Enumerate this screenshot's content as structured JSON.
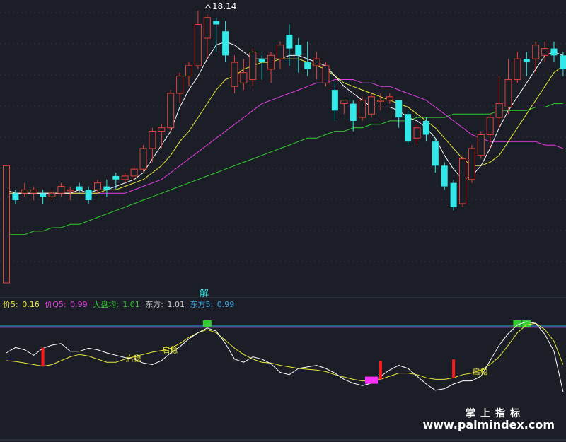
{
  "colors": {
    "background": "#1b1e26",
    "up": "#e2433b",
    "down": "#33e8e8",
    "ma_white": "#ffffff",
    "ma_yellow": "#e8e83a",
    "ma_magenta": "#e23ee2",
    "ma_green": "#33cc33",
    "separator": "#3a3d47",
    "grid": "#2f323c"
  },
  "main_chart": {
    "peak_label": "18.14",
    "jie_label": "解",
    "ylim": [
      0,
      1
    ]
  },
  "legend": [
    {
      "name": "价5:",
      "value": "0.16",
      "color": "#e8e83a"
    },
    {
      "name": "价Q5:",
      "value": "0.99",
      "color": "#e23ee2"
    },
    {
      "name": "大盘均:",
      "value": "1.01",
      "color": "#33cc33"
    },
    {
      "name": "东方:",
      "value": "1.01",
      "color": "#cccccc"
    },
    {
      "name": "东方5:",
      "value": "0.99",
      "color": "#3aa6e8"
    }
  ],
  "sub_chart": {
    "signal_label": "启稳"
  },
  "watermark": {
    "cn": "掌上指标",
    "url": "www.palmindex.com"
  },
  "chart_data": {
    "type": "line",
    "candles": [
      [
        0.21,
        0.55,
        0.49,
        0.5
      ],
      [
        0.47,
        0.45,
        0.48,
        0.44
      ],
      [
        0.47,
        0.48,
        0.5,
        0.46
      ],
      [
        0.47,
        0.48,
        0.49,
        0.45
      ],
      [
        0.47,
        0.46,
        0.48,
        0.44
      ],
      [
        0.46,
        0.47,
        0.48,
        0.45
      ],
      [
        0.47,
        0.49,
        0.5,
        0.46
      ],
      [
        0.48,
        0.48,
        0.49,
        0.45
      ],
      [
        0.49,
        0.48,
        0.5,
        0.47
      ],
      [
        0.48,
        0.45,
        0.49,
        0.44
      ],
      [
        0.48,
        0.5,
        0.51,
        0.47
      ],
      [
        0.49,
        0.48,
        0.51,
        0.46
      ],
      [
        0.52,
        0.51,
        0.53,
        0.48
      ],
      [
        0.51,
        0.52,
        0.53,
        0.5
      ],
      [
        0.52,
        0.54,
        0.55,
        0.51
      ],
      [
        0.54,
        0.6,
        0.61,
        0.53
      ],
      [
        0.6,
        0.65,
        0.66,
        0.56
      ],
      [
        0.65,
        0.66,
        0.67,
        0.6
      ],
      [
        0.66,
        0.76,
        0.77,
        0.65
      ],
      [
        0.76,
        0.81,
        0.82,
        0.73
      ],
      [
        0.81,
        0.84,
        0.85,
        0.78
      ],
      [
        0.84,
        0.96,
        1.0,
        0.83
      ],
      [
        0.92,
        0.98,
        0.99,
        0.86
      ],
      [
        0.97,
        0.96,
        0.98,
        0.88
      ],
      [
        0.94,
        0.87,
        0.97,
        0.85
      ],
      [
        0.78,
        0.85,
        0.87,
        0.76
      ],
      [
        0.79,
        0.82,
        0.86,
        0.77
      ],
      [
        0.8,
        0.88,
        0.89,
        0.78
      ],
      [
        0.86,
        0.85,
        0.87,
        0.8
      ],
      [
        0.83,
        0.87,
        0.88,
        0.79
      ],
      [
        0.86,
        0.9,
        0.91,
        0.83
      ],
      [
        0.93,
        0.89,
        0.96,
        0.84
      ],
      [
        0.9,
        0.87,
        0.92,
        0.82
      ],
      [
        0.85,
        0.83,
        0.91,
        0.81
      ],
      [
        0.84,
        0.86,
        0.88,
        0.8
      ],
      [
        0.79,
        0.84,
        0.85,
        0.78
      ],
      [
        0.77,
        0.71,
        0.79,
        0.68
      ],
      [
        0.73,
        0.74,
        0.74,
        0.7
      ],
      [
        0.73,
        0.68,
        0.74,
        0.65
      ],
      [
        0.69,
        0.74,
        0.75,
        0.68
      ],
      [
        0.7,
        0.75,
        0.76,
        0.69
      ],
      [
        0.74,
        0.74,
        0.76,
        0.71
      ],
      [
        0.74,
        0.75,
        0.76,
        0.73
      ],
      [
        0.74,
        0.69,
        0.74,
        0.66
      ],
      [
        0.7,
        0.62,
        0.71,
        0.61
      ],
      [
        0.63,
        0.66,
        0.67,
        0.61
      ],
      [
        0.68,
        0.64,
        0.69,
        0.62
      ],
      [
        0.62,
        0.55,
        0.63,
        0.53
      ],
      [
        0.55,
        0.49,
        0.56,
        0.48
      ],
      [
        0.5,
        0.43,
        0.51,
        0.42
      ],
      [
        0.44,
        0.57,
        0.58,
        0.43
      ],
      [
        0.51,
        0.6,
        0.61,
        0.5
      ],
      [
        0.58,
        0.64,
        0.65,
        0.57
      ],
      [
        0.64,
        0.69,
        0.7,
        0.6
      ],
      [
        0.69,
        0.73,
        0.81,
        0.66
      ],
      [
        0.72,
        0.8,
        0.86,
        0.7
      ],
      [
        0.8,
        0.86,
        0.88,
        0.79
      ],
      [
        0.86,
        0.85,
        0.88,
        0.81
      ],
      [
        0.86,
        0.9,
        0.91,
        0.82
      ],
      [
        0.87,
        0.89,
        0.91,
        0.85
      ],
      [
        0.89,
        0.87,
        0.91,
        0.85
      ],
      [
        0.87,
        0.83,
        0.88,
        0.81
      ]
    ],
    "ma_white": [
      0.48,
      0.47,
      0.47,
      0.47,
      0.47,
      0.47,
      0.47,
      0.47,
      0.48,
      0.47,
      0.48,
      0.48,
      0.49,
      0.5,
      0.51,
      0.53,
      0.57,
      0.61,
      0.65,
      0.72,
      0.77,
      0.81,
      0.86,
      0.9,
      0.91,
      0.9,
      0.88,
      0.86,
      0.86,
      0.86,
      0.86,
      0.87,
      0.87,
      0.86,
      0.85,
      0.84,
      0.81,
      0.78,
      0.76,
      0.74,
      0.72,
      0.72,
      0.72,
      0.71,
      0.69,
      0.68,
      0.66,
      0.63,
      0.58,
      0.54,
      0.51,
      0.52,
      0.55,
      0.6,
      0.66,
      0.71,
      0.75,
      0.79,
      0.83,
      0.87,
      0.88,
      0.87
    ],
    "ma_yellow": [
      0.47,
      0.47,
      0.47,
      0.47,
      0.47,
      0.47,
      0.47,
      0.47,
      0.47,
      0.47,
      0.47,
      0.48,
      0.48,
      0.49,
      0.5,
      0.51,
      0.53,
      0.55,
      0.58,
      0.62,
      0.65,
      0.69,
      0.73,
      0.77,
      0.8,
      0.81,
      0.83,
      0.84,
      0.85,
      0.85,
      0.86,
      0.86,
      0.86,
      0.85,
      0.84,
      0.83,
      0.81,
      0.79,
      0.78,
      0.77,
      0.76,
      0.75,
      0.74,
      0.73,
      0.72,
      0.7,
      0.68,
      0.66,
      0.63,
      0.6,
      0.57,
      0.55,
      0.55,
      0.56,
      0.58,
      0.62,
      0.66,
      0.7,
      0.74,
      0.78,
      0.82,
      0.84
    ],
    "ma_magenta": [
      0.47,
      0.47,
      0.47,
      0.47,
      0.47,
      0.47,
      0.47,
      0.47,
      0.47,
      0.47,
      0.47,
      0.47,
      0.47,
      0.47,
      0.48,
      0.49,
      0.5,
      0.51,
      0.53,
      0.55,
      0.57,
      0.59,
      0.61,
      0.63,
      0.65,
      0.67,
      0.69,
      0.71,
      0.73,
      0.74,
      0.75,
      0.76,
      0.77,
      0.78,
      0.79,
      0.79,
      0.8,
      0.8,
      0.8,
      0.79,
      0.79,
      0.78,
      0.78,
      0.77,
      0.76,
      0.75,
      0.74,
      0.72,
      0.7,
      0.68,
      0.66,
      0.64,
      0.63,
      0.62,
      0.62,
      0.62,
      0.62,
      0.62,
      0.62,
      0.61,
      0.61,
      0.6
    ],
    "ma_green": [
      0.35,
      0.35,
      0.35,
      0.36,
      0.36,
      0.37,
      0.37,
      0.38,
      0.38,
      0.39,
      0.4,
      0.41,
      0.42,
      0.43,
      0.44,
      0.45,
      0.46,
      0.47,
      0.48,
      0.49,
      0.5,
      0.51,
      0.52,
      0.53,
      0.54,
      0.55,
      0.56,
      0.57,
      0.58,
      0.59,
      0.6,
      0.61,
      0.62,
      0.63,
      0.63,
      0.64,
      0.65,
      0.65,
      0.66,
      0.66,
      0.67,
      0.67,
      0.68,
      0.68,
      0.68,
      0.69,
      0.69,
      0.69,
      0.69,
      0.7,
      0.7,
      0.7,
      0.7,
      0.7,
      0.71,
      0.71,
      0.71,
      0.71,
      0.72,
      0.72,
      0.73,
      0.73
    ],
    "osc_white": [
      0.6,
      0.67,
      0.64,
      0.57,
      0.66,
      0.7,
      0.72,
      0.62,
      0.62,
      0.66,
      0.64,
      0.6,
      0.57,
      0.54,
      0.52,
      0.47,
      0.45,
      0.5,
      0.6,
      0.68,
      0.78,
      0.86,
      0.92,
      0.88,
      0.72,
      0.52,
      0.48,
      0.55,
      0.52,
      0.46,
      0.35,
      0.32,
      0.4,
      0.42,
      0.44,
      0.4,
      0.34,
      0.26,
      0.21,
      0.18,
      0.21,
      0.3,
      0.38,
      0.44,
      0.4,
      0.3,
      0.2,
      0.12,
      0.14,
      0.2,
      0.24,
      0.24,
      0.3,
      0.5,
      0.7,
      0.85,
      0.96,
      1.0,
      0.98,
      0.84,
      0.62,
      0.1
    ],
    "osc_yellow": [
      0.5,
      0.49,
      0.47,
      0.45,
      0.43,
      0.45,
      0.5,
      0.55,
      0.58,
      0.56,
      0.52,
      0.48,
      0.48,
      0.52,
      0.55,
      0.58,
      0.61,
      0.63,
      0.66,
      0.72,
      0.8,
      0.86,
      0.9,
      0.86,
      0.76,
      0.66,
      0.58,
      0.52,
      0.48,
      0.47,
      0.44,
      0.42,
      0.4,
      0.39,
      0.38,
      0.36,
      0.32,
      0.29,
      0.26,
      0.24,
      0.24,
      0.26,
      0.3,
      0.34,
      0.34,
      0.32,
      0.28,
      0.26,
      0.26,
      0.28,
      0.32,
      0.34,
      0.38,
      0.45,
      0.55,
      0.7,
      0.86,
      0.96,
      0.98,
      0.9,
      0.75,
      0.45
    ],
    "osc_magenta_flat": 0.93,
    "osc_blue_flat": 0.945,
    "red_signals": [
      4,
      41,
      49
    ],
    "magenta_signal": 40,
    "green_volume_bars": [
      22,
      56,
      57
    ]
  }
}
